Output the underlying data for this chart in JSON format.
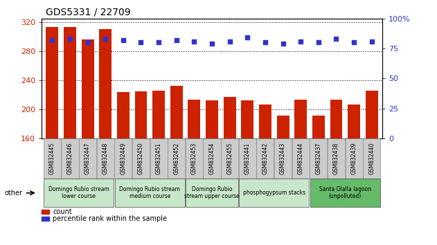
{
  "title": "GDS5331 / 22709",
  "samples": [
    "GSM832445",
    "GSM832446",
    "GSM832447",
    "GSM832448",
    "GSM832449",
    "GSM832450",
    "GSM832451",
    "GSM832452",
    "GSM832453",
    "GSM832454",
    "GSM832455",
    "GSM832441",
    "GSM832442",
    "GSM832443",
    "GSM832444",
    "GSM832437",
    "GSM832438",
    "GSM832439",
    "GSM832440"
  ],
  "counts": [
    313,
    313,
    296,
    310,
    224,
    225,
    226,
    232,
    213,
    212,
    217,
    212,
    207,
    191,
    213,
    191,
    213,
    207,
    226
  ],
  "percentiles": [
    82,
    83,
    80,
    83,
    82,
    80,
    80,
    82,
    81,
    79,
    81,
    84,
    80,
    79,
    81,
    80,
    83,
    80,
    81
  ],
  "ylim_left": [
    160,
    325
  ],
  "ylim_right": [
    0,
    100
  ],
  "yticks_left": [
    160,
    200,
    240,
    280,
    320
  ],
  "yticks_right": [
    0,
    25,
    50,
    75,
    100
  ],
  "bar_color": "#cc2200",
  "dot_color": "#3333cc",
  "bar_width": 0.7,
  "groups": [
    {
      "label": "Domingo Rubio stream\nlower course",
      "start": 0,
      "end": 3,
      "color": "#c8e6c9"
    },
    {
      "label": "Domingo Rubio stream\nmedium course",
      "start": 4,
      "end": 7,
      "color": "#c8e6c9"
    },
    {
      "label": "Domingo Rubio\nstream upper course",
      "start": 8,
      "end": 10,
      "color": "#c8e6c9"
    },
    {
      "label": "phosphogypsum stacks",
      "start": 11,
      "end": 14,
      "color": "#c8e6c9"
    },
    {
      "label": "Santa Olalla lagoon\n(unpolluted)",
      "start": 15,
      "end": 18,
      "color": "#66bb6a"
    }
  ],
  "legend_count_label": "count",
  "legend_pct_label": "percentile rank within the sample",
  "other_label": "other",
  "tick_bg_color": "#cccccc"
}
